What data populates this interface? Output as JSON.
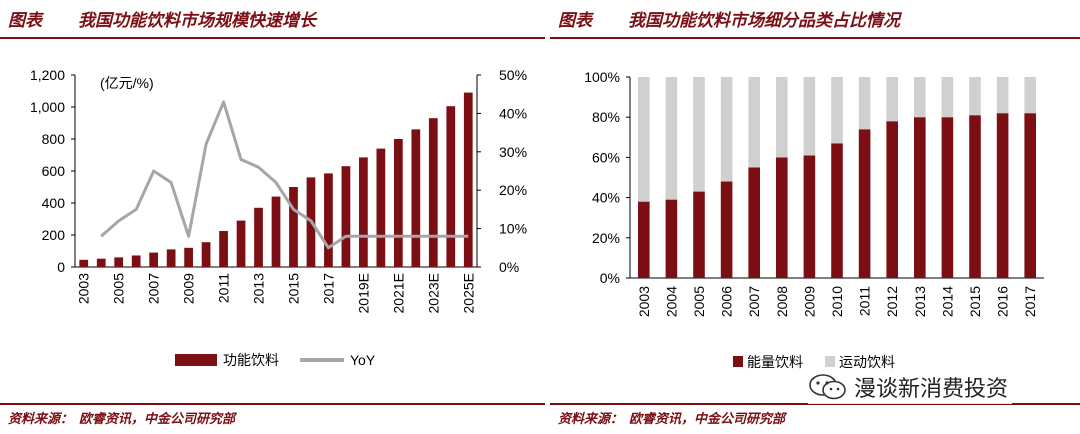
{
  "left": {
    "fig_label": "图表",
    "title": "我国功能饮料市场规模快速增长",
    "source_label": "资料来源：",
    "source_text": "欧睿资讯，中金公司研究部"
  },
  "right": {
    "fig_label": "图表",
    "title": "我国功能饮料市场细分品类占比情况",
    "source_label": "资料来源：",
    "source_text": "欧睿资讯，中金公司研究部"
  },
  "watermark": "漫谈新消费投资",
  "colors": {
    "bar": "#7b0f14",
    "line": "#a6a6a6",
    "light": "#d0d0d0",
    "title": "#7b0f14"
  },
  "chart_data": [
    {
      "type": "bar",
      "unit_label": "(亿元/%)",
      "categories": [
        "2003",
        "2004",
        "2005",
        "2006",
        "2007",
        "2008",
        "2009",
        "2010",
        "2011",
        "2012",
        "2013",
        "2014",
        "2015",
        "2016",
        "2017",
        "2018",
        "2019E",
        "2020E",
        "2021E",
        "2022E",
        "2023E",
        "2024E",
        "2025E"
      ],
      "x_tick_labels": [
        "2003",
        "2005",
        "2007",
        "2009",
        "2011",
        "2013",
        "2015",
        "2017",
        "2019E",
        "2021E",
        "2023E",
        "2025E"
      ],
      "series": [
        {
          "name": "功能饮料",
          "type": "bar",
          "axis": "left",
          "values": [
            45,
            52,
            60,
            72,
            90,
            110,
            120,
            155,
            225,
            290,
            370,
            440,
            500,
            560,
            585,
            630,
            685,
            740,
            800,
            860,
            930,
            1005,
            1090
          ]
        },
        {
          "name": "YoY",
          "type": "line",
          "axis": "right",
          "values": [
            null,
            8,
            12,
            15,
            25,
            22,
            8,
            32,
            43,
            28,
            26,
            22,
            15,
            12,
            5,
            8,
            8,
            8,
            8,
            8,
            8,
            8,
            8
          ]
        }
      ],
      "ylim_left": [
        0,
        1200
      ],
      "yticks_left": [
        "0",
        "200",
        "400",
        "600",
        "800",
        "1,000",
        "1,200"
      ],
      "ylim_right": [
        0,
        50
      ],
      "yticks_right": [
        "0%",
        "10%",
        "20%",
        "30%",
        "40%",
        "50%"
      ],
      "legend_position": "bottom"
    },
    {
      "type": "bar",
      "stacked": true,
      "categories": [
        "2003",
        "2004",
        "2005",
        "2006",
        "2007",
        "2008",
        "2009",
        "2010",
        "2011",
        "2012",
        "2013",
        "2014",
        "2015",
        "2016",
        "2017"
      ],
      "series": [
        {
          "name": "能量饮料",
          "values": [
            38,
            39,
            43,
            48,
            55,
            60,
            61,
            67,
            74,
            78,
            80,
            80,
            81,
            82,
            82
          ]
        },
        {
          "name": "运动饮料",
          "values": [
            62,
            61,
            57,
            52,
            45,
            40,
            39,
            33,
            26,
            22,
            20,
            20,
            19,
            18,
            18
          ]
        }
      ],
      "ylim": [
        0,
        100
      ],
      "yticks": [
        "0%",
        "20%",
        "40%",
        "60%",
        "80%",
        "100%"
      ],
      "legend_position": "bottom"
    }
  ]
}
